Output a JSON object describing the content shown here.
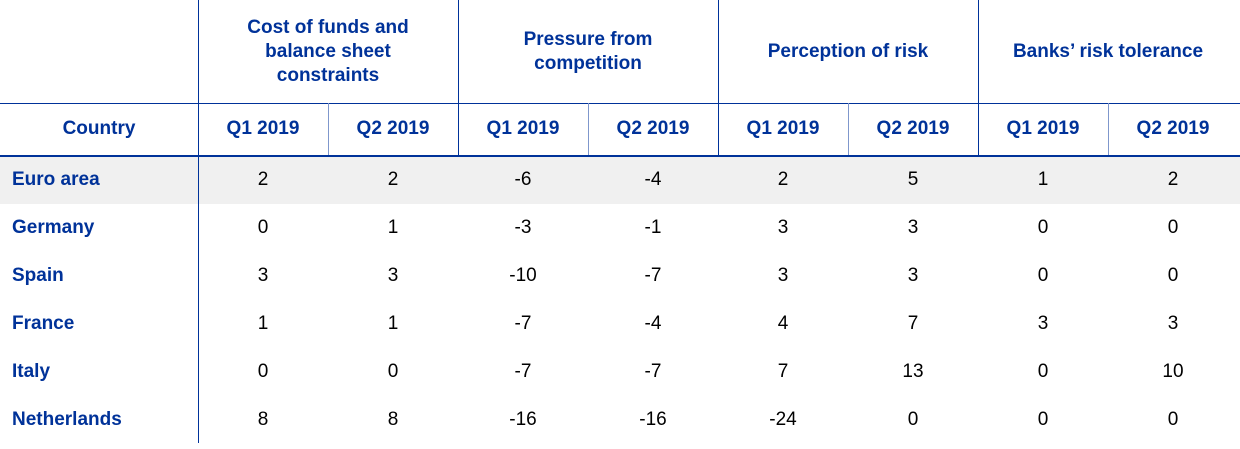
{
  "table": {
    "group_headers": [
      "Cost of funds and balance sheet constraints",
      "Pressure from competition",
      "Perception of risk",
      "Banks’ risk tolerance"
    ],
    "country_header": "Country",
    "column_headers": [
      "Q1 2019",
      "Q2 2019",
      "Q1 2019",
      "Q2 2019",
      "Q1 2019",
      "Q2 2019",
      "Q1 2019",
      "Q2 2019"
    ],
    "rows": [
      {
        "country": "Euro area",
        "values": [
          2,
          2,
          -6,
          -4,
          2,
          5,
          1,
          2
        ]
      },
      {
        "country": "Germany",
        "values": [
          0,
          1,
          -3,
          -1,
          3,
          3,
          0,
          0
        ]
      },
      {
        "country": "Spain",
        "values": [
          3,
          3,
          -10,
          -7,
          3,
          3,
          0,
          0
        ]
      },
      {
        "country": "France",
        "values": [
          1,
          1,
          -7,
          -4,
          4,
          7,
          3,
          3
        ]
      },
      {
        "country": "Italy",
        "values": [
          0,
          0,
          -7,
          -7,
          7,
          13,
          0,
          10
        ]
      },
      {
        "country": "Netherlands",
        "values": [
          8,
          8,
          -16,
          -16,
          -24,
          0,
          0,
          0
        ]
      }
    ]
  }
}
